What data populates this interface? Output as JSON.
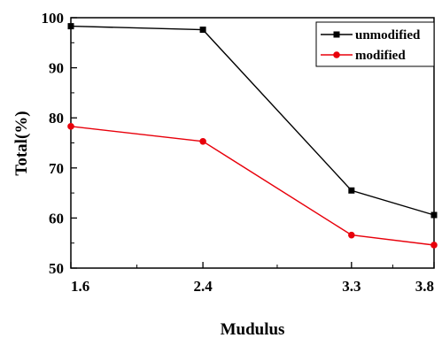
{
  "chart_data": {
    "type": "line",
    "title": "",
    "xlabel": "Mudulus",
    "ylabel": "Total(%)",
    "categories": [
      "1.6",
      "2.4",
      "3.3",
      "3.8"
    ],
    "x": [
      1.6,
      2.4,
      3.3,
      3.8
    ],
    "xlim": [
      1.6,
      3.8
    ],
    "ylim": [
      50,
      100
    ],
    "yticks": [
      50,
      60,
      70,
      80,
      90,
      100
    ],
    "grid": false,
    "legend_position": "top-right",
    "series": [
      {
        "name": "unmodified",
        "values": [
          98.3,
          97.6,
          65.5,
          60.6
        ],
        "color": "#000000",
        "marker": "square"
      },
      {
        "name": "modified",
        "values": [
          78.3,
          75.3,
          56.6,
          54.6
        ],
        "color": "#e8000b",
        "marker": "circle"
      }
    ]
  }
}
